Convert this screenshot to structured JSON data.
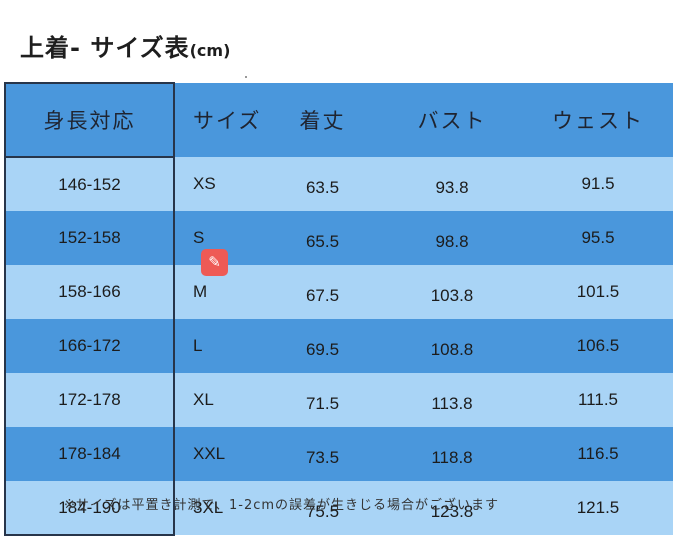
{
  "title": {
    "main": "上着- サイズ表",
    "unit": "(cm)"
  },
  "table": {
    "headers": [
      "身長対応",
      "サイズ",
      "着丈",
      "バスト",
      "ウェスト"
    ],
    "rows": [
      [
        "146-152",
        "XS",
        "63.5",
        "93.8",
        "91.5"
      ],
      [
        "152-158",
        "S",
        "65.5",
        "98.8",
        "95.5"
      ],
      [
        "158-166",
        "M",
        "67.5",
        "103.8",
        "101.5"
      ],
      [
        "166-172",
        "L",
        "69.5",
        "108.8",
        "106.5"
      ],
      [
        "172-178",
        "XL",
        "71.5",
        "113.8",
        "111.5"
      ],
      [
        "178-184",
        "XXL",
        "73.5",
        "118.8",
        "116.5"
      ],
      [
        "184-190",
        "3XL",
        "75.5",
        "123.8",
        "121.5"
      ]
    ]
  },
  "overlay": {
    "icon": "edit-sparkle-icon",
    "glyph": "✎",
    "color": "#ee5a55"
  },
  "note": "※サイズは平置き計測で、1-2cmの誤差が生きじる場合がございます"
}
